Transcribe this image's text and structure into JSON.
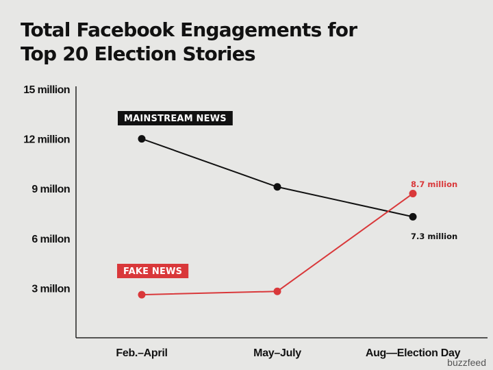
{
  "title_lines": [
    "Total Facebook Engagements for",
    "Top 20 Election Stories"
  ],
  "credit": "buzzfeed",
  "colors": {
    "mainstream": "#111111",
    "fake": "#d9383a",
    "axis": "#222222"
  },
  "chart_data": {
    "type": "line",
    "title": "Total Facebook Engagements for Top 20 Election Stories",
    "xlabel": "",
    "ylabel": "",
    "ylim": [
      0,
      15
    ],
    "grid": false,
    "categories": [
      "Feb.–April",
      "May–July",
      "Aug—Election Day"
    ],
    "y_ticks": [
      {
        "value": 3,
        "label": "3 millon"
      },
      {
        "value": 6,
        "label": "6 millon"
      },
      {
        "value": 9,
        "label": "9 millon"
      },
      {
        "value": 12,
        "label": "12 million"
      },
      {
        "value": 15,
        "label": "15 million"
      }
    ],
    "series": [
      {
        "name": "MAINSTREAM NEWS",
        "values": [
          12,
          9.1,
          7.3
        ],
        "end_label": "7.3 million",
        "color": "#111111"
      },
      {
        "name": "FAKE NEWS",
        "values": [
          2.6,
          2.8,
          8.7
        ],
        "end_label": "8.7 million",
        "color": "#d9383a"
      }
    ]
  }
}
